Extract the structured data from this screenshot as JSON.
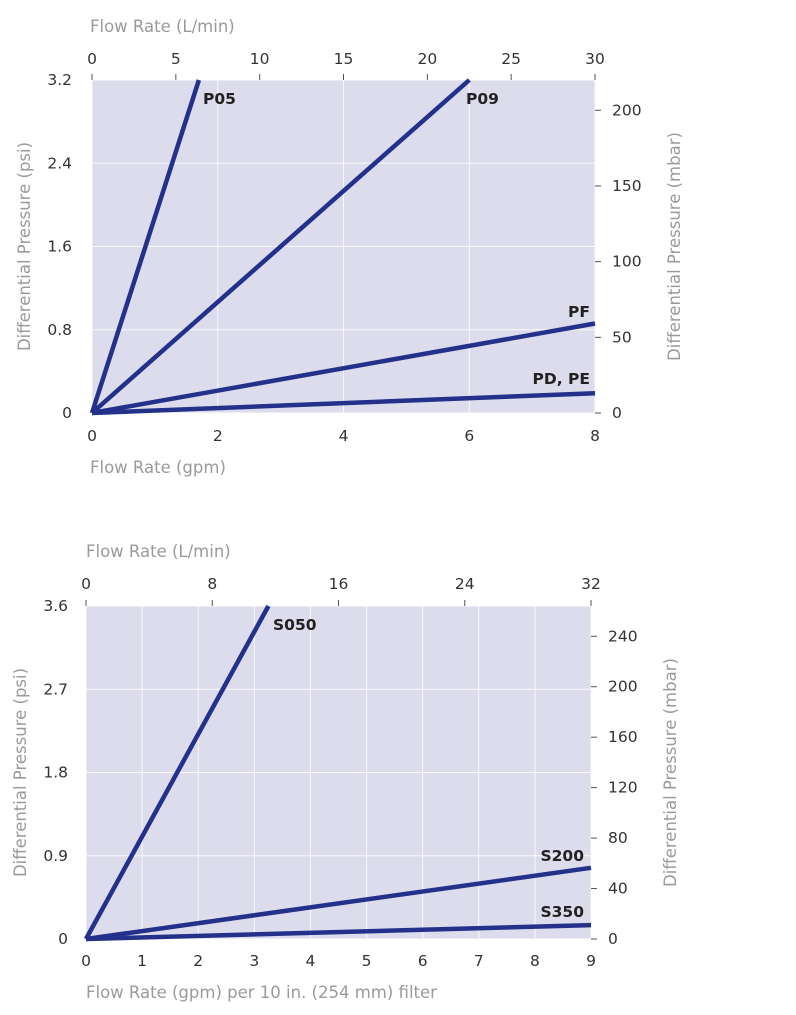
{
  "colors": {
    "plot_background": "#dcdcec",
    "series_line": "#23318b",
    "axis_title": "#9a9a9a",
    "tick_label": "#333333"
  },
  "chart_data": [
    {
      "type": "line",
      "top_axis": {
        "label": "Flow Rate (L/min)",
        "ticks": [
          0,
          5,
          10,
          15,
          20,
          25,
          30
        ]
      },
      "xlabel": "Flow Rate (gpm)",
      "x_ticks": [
        0,
        2,
        4,
        6,
        8
      ],
      "xlim": [
        0,
        8
      ],
      "ylabel": "Differential Pressure (psi)",
      "y_ticks": [
        "0",
        "0.8",
        "1.6",
        "2.4",
        "3.2"
      ],
      "ylim": [
        0,
        3.2
      ],
      "right_axis": {
        "label": "Differential Pressure (mbar)",
        "ticks": [
          0,
          50,
          100,
          150,
          200
        ]
      },
      "grid": true,
      "series": [
        {
          "name": "P05",
          "x": [
            0,
            1.7
          ],
          "y": [
            0,
            3.2
          ]
        },
        {
          "name": "P09",
          "x": [
            0,
            6.0
          ],
          "y": [
            0,
            3.2
          ]
        },
        {
          "name": "PF",
          "x": [
            0,
            8.0
          ],
          "y": [
            0,
            0.86
          ]
        },
        {
          "name": "PD, PE",
          "x": [
            0,
            8.0
          ],
          "y": [
            0,
            0.19
          ]
        }
      ]
    },
    {
      "type": "line",
      "top_axis": {
        "label": "Flow Rate (L/min)",
        "ticks": [
          0,
          8,
          16,
          24,
          32
        ]
      },
      "xlabel": "Flow Rate (gpm) per 10 in. (254 mm) filter",
      "x_ticks": [
        0,
        1,
        2,
        3,
        4,
        5,
        6,
        7,
        8,
        9
      ],
      "xlim": [
        0,
        9
      ],
      "ylabel": "Differential Pressure (psi)",
      "y_ticks": [
        "0",
        "0.9",
        "1.8",
        "2.7",
        "3.6"
      ],
      "ylim": [
        0,
        3.6
      ],
      "right_axis": {
        "label": "Differential Pressure (mbar)",
        "ticks": [
          0,
          40,
          80,
          120,
          160,
          200,
          240
        ]
      },
      "grid": true,
      "series": [
        {
          "name": "S050",
          "x": [
            0,
            3.25
          ],
          "y": [
            0,
            3.6
          ]
        },
        {
          "name": "S200",
          "x": [
            0,
            9.0
          ],
          "y": [
            0,
            0.77
          ]
        },
        {
          "name": "S350",
          "x": [
            0,
            9.0
          ],
          "y": [
            0,
            0.15
          ]
        }
      ]
    }
  ]
}
